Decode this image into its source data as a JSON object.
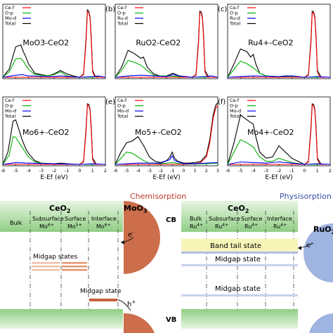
{
  "chart_data": [
    {
      "type": "line",
      "panel": "a",
      "label": "",
      "title": "MoO3-CeO2",
      "xlabel": "",
      "xlim": [
        -6,
        2
      ],
      "legend": [
        "Ce-f",
        "O-p",
        "Mo-d",
        "Total"
      ],
      "legend_position": "top-left",
      "series": [
        {
          "name": "Total",
          "color": "#000000",
          "x": [
            -6,
            -5.5,
            -5,
            -4.6,
            -4.4,
            -4.2,
            -4,
            -3.5,
            -3,
            -2.5,
            -2,
            -1.5,
            -1,
            -0.5,
            0,
            0.3,
            0.5,
            0.6,
            0.7,
            0.8,
            0.9,
            1,
            1.2,
            1.5,
            2
          ],
          "y": [
            0,
            0.12,
            0.45,
            0.48,
            0.38,
            0.3,
            0.2,
            0.06,
            0.04,
            0.02,
            0.05,
            0.1,
            0.05,
            0.02,
            0,
            0.05,
            0.6,
            1.0,
            0.98,
            0.9,
            0.6,
            0.1,
            0.02,
            0,
            0
          ]
        },
        {
          "name": "O-p",
          "color": "#00b000",
          "x": [
            -6,
            -5.5,
            -5,
            -4.6,
            -4.4,
            -4.2,
            -4,
            -3.5,
            -3,
            -2.5,
            -2,
            -1.5,
            -1,
            0,
            2
          ],
          "y": [
            0,
            0.08,
            0.27,
            0.28,
            0.24,
            0.18,
            0.12,
            0.04,
            0.03,
            0.02,
            0.04,
            0.08,
            0.02,
            0,
            0
          ]
        },
        {
          "name": "Ce-f",
          "color": "#ff0000",
          "x": [
            -6,
            0,
            0.3,
            0.5,
            0.6,
            0.7,
            0.8,
            0.9,
            1,
            1.2,
            2
          ],
          "y": [
            0,
            0,
            0.04,
            0.55,
            0.97,
            0.96,
            0.88,
            0.55,
            0.08,
            0,
            0
          ]
        },
        {
          "name": "Mo-d",
          "color": "#0000ff",
          "x": [
            -6,
            -5,
            -4.5,
            -4,
            -2,
            -1.5,
            0,
            1,
            1.5,
            2
          ],
          "y": [
            0,
            0.03,
            0.04,
            0.02,
            0.01,
            0.02,
            0,
            0.01,
            0.02,
            0
          ]
        }
      ]
    },
    {
      "type": "line",
      "panel": "b",
      "label": "(b)",
      "title": "RuO2-CeO2",
      "xlabel": "",
      "xlim": [
        -6,
        2
      ],
      "legend": [
        "Ce-f",
        "O-p",
        "Ru-d",
        "Total"
      ],
      "legend_position": "top-left",
      "series": [
        {
          "name": "Total",
          "color": "#000000",
          "x": [
            -6,
            -5.5,
            -5,
            -4.5,
            -4,
            -3.8,
            -3.5,
            -3,
            -2.5,
            -2,
            -1.5,
            -1,
            0,
            0.3,
            0.5,
            0.6,
            0.7,
            0.8,
            0.9,
            1,
            1.3,
            2
          ],
          "y": [
            0,
            0.15,
            0.4,
            0.35,
            0.28,
            0.3,
            0.15,
            0.05,
            0.02,
            0.02,
            0.06,
            0.02,
            0,
            0.04,
            0.55,
            0.98,
            0.97,
            0.9,
            0.6,
            0.1,
            0,
            0
          ]
        },
        {
          "name": "O-p",
          "color": "#00b000",
          "x": [
            -6,
            -5.5,
            -5,
            -4.5,
            -4,
            -3.5,
            -3,
            -2.5,
            -2,
            -1,
            0,
            2
          ],
          "y": [
            0,
            0.1,
            0.25,
            0.22,
            0.18,
            0.1,
            0.03,
            0.02,
            0.02,
            0.01,
            0,
            0
          ]
        },
        {
          "name": "Ce-f",
          "color": "#ff0000",
          "x": [
            -6,
            0,
            0.3,
            0.5,
            0.6,
            0.7,
            0.8,
            0.9,
            1,
            1.2,
            2
          ],
          "y": [
            0,
            0,
            0.03,
            0.5,
            0.96,
            0.95,
            0.88,
            0.55,
            0.08,
            0,
            0
          ]
        },
        {
          "name": "Ru-d",
          "color": "#0000ff",
          "x": [
            -6,
            -5,
            -4,
            -3,
            -2,
            -1.5,
            -1,
            0,
            1,
            1.5,
            2
          ],
          "y": [
            0,
            0.02,
            0.03,
            0.02,
            0.01,
            0.04,
            0.02,
            0,
            0.01,
            0.02,
            0
          ]
        }
      ]
    },
    {
      "type": "line",
      "panel": "c",
      "label": "(c)",
      "title": "Ru4+-CeO2",
      "xlabel": "",
      "xlim": [
        -6,
        2
      ],
      "legend": [
        "Ce-f",
        "O-p",
        "Ru-d",
        "Total"
      ],
      "legend_position": "top-left",
      "series": [
        {
          "name": "Total",
          "color": "#000000",
          "x": [
            -6,
            -5.5,
            -5,
            -4.5,
            -4.2,
            -4,
            -3.8,
            -3.5,
            -3,
            -2.5,
            -2,
            -1.5,
            -1,
            0,
            0.3,
            0.5,
            0.6,
            0.7,
            0.8,
            0.9,
            1,
            1.3,
            2
          ],
          "y": [
            0,
            0.2,
            0.42,
            0.38,
            0.3,
            0.34,
            0.2,
            0.06,
            0.02,
            0.01,
            0.01,
            0.02,
            0.02,
            0,
            0.04,
            0.55,
            0.98,
            0.97,
            0.9,
            0.6,
            0.1,
            0,
            0
          ]
        },
        {
          "name": "O-p",
          "color": "#00b000",
          "x": [
            -6,
            -5.5,
            -5,
            -4.5,
            -4,
            -3.5,
            -3,
            -2,
            0,
            2
          ],
          "y": [
            0,
            0.12,
            0.24,
            0.2,
            0.14,
            0.06,
            0.02,
            0.01,
            0,
            0
          ]
        },
        {
          "name": "Ce-f",
          "color": "#ff0000",
          "x": [
            -6,
            0,
            0.3,
            0.5,
            0.6,
            0.7,
            0.8,
            0.9,
            1,
            1.2,
            2
          ],
          "y": [
            0,
            0,
            0.03,
            0.5,
            0.96,
            0.95,
            0.88,
            0.55,
            0.08,
            0,
            0
          ]
        },
        {
          "name": "Ru-d",
          "color": "#0000ff",
          "x": [
            -6,
            -4,
            -2,
            -1,
            0,
            1,
            2
          ],
          "y": [
            0,
            0.02,
            0.01,
            0.02,
            0,
            0.01,
            0
          ]
        }
      ]
    },
    {
      "type": "line",
      "panel": "d",
      "label": "",
      "title": "Mo6+-CeO2",
      "xlabel": "E-Ef (eV)",
      "xlim": [
        -6,
        2
      ],
      "xticks": [
        -6,
        -5,
        -4,
        -3,
        -2,
        -1,
        0,
        1,
        2
      ],
      "legend": [
        "Ce-f",
        "O-p",
        "Mo-d",
        "Total"
      ],
      "legend_position": "top-left",
      "series": [
        {
          "name": "Total",
          "color": "#000000",
          "x": [
            -6,
            -5.6,
            -5.2,
            -5,
            -4.8,
            -4.5,
            -4.2,
            -4,
            -3.5,
            -3,
            -2.5,
            -2,
            -1.5,
            -1,
            0,
            0.3,
            0.5,
            0.6,
            0.7,
            0.8,
            0.9,
            1,
            1.3,
            2
          ],
          "y": [
            0,
            0.2,
            0.7,
            0.72,
            0.6,
            0.4,
            0.25,
            0.18,
            0.06,
            0.02,
            0.01,
            0.01,
            0.02,
            0.01,
            0,
            0.05,
            0.6,
            0.98,
            0.97,
            0.9,
            0.6,
            0.1,
            0,
            0
          ]
        },
        {
          "name": "O-p",
          "color": "#00b000",
          "x": [
            -6,
            -5.5,
            -5.2,
            -5,
            -4.5,
            -4,
            -3.5,
            -3,
            -2,
            0,
            2
          ],
          "y": [
            0,
            0.15,
            0.45,
            0.44,
            0.28,
            0.12,
            0.04,
            0.02,
            0.01,
            0,
            0
          ]
        },
        {
          "name": "Ce-f",
          "color": "#ff0000",
          "x": [
            -6,
            0,
            0.3,
            0.5,
            0.6,
            0.7,
            0.8,
            0.9,
            1,
            1.2,
            2
          ],
          "y": [
            0,
            0,
            0.04,
            0.55,
            0.96,
            0.95,
            0.88,
            0.55,
            0.08,
            0,
            0
          ]
        },
        {
          "name": "Mo-d",
          "color": "#0000ff",
          "x": [
            -6,
            -5,
            -4,
            -2,
            0,
            1,
            2
          ],
          "y": [
            0,
            0.03,
            0.02,
            0.01,
            0,
            0.01,
            0
          ]
        }
      ]
    },
    {
      "type": "line",
      "panel": "e",
      "label": "(e)",
      "title": "Mo5+-CeO2",
      "xlabel": "E-Ef (eV)",
      "xlim": [
        -6,
        3
      ],
      "xticks": [
        -6,
        -5,
        -4,
        -3,
        -2,
        -1,
        0,
        1,
        2,
        3
      ],
      "legend": [
        "Ce-f",
        "O-p",
        "Mo-d",
        "Total"
      ],
      "legend_position": "top-left",
      "series": [
        {
          "name": "Total",
          "color": "#000000",
          "x": [
            -6,
            -5.5,
            -5,
            -4.5,
            -4,
            -3.5,
            -3,
            -2.5,
            -2,
            -1.5,
            -1.2,
            -1,
            -0.8,
            -0.5,
            0,
            0.5,
            1,
            1.5,
            2,
            2.3,
            2.6,
            2.8,
            3
          ],
          "y": [
            0,
            0.2,
            0.35,
            0.38,
            0.45,
            0.3,
            0.12,
            0.05,
            0.03,
            0.06,
            0.12,
            0.2,
            0.1,
            0.05,
            0.02,
            0.02,
            0.03,
            0.05,
            0.15,
            0.4,
            0.8,
            0.95,
            1.0
          ]
        },
        {
          "name": "O-p",
          "color": "#00b000",
          "x": [
            -6,
            -5.5,
            -5,
            -4.5,
            -4,
            -3.5,
            -3,
            -2,
            -1,
            0,
            2,
            3
          ],
          "y": [
            0,
            0.1,
            0.2,
            0.18,
            0.12,
            0.06,
            0.02,
            0.01,
            0.03,
            0,
            0.01,
            0.02
          ]
        },
        {
          "name": "Ce-f",
          "color": "#ff0000",
          "x": [
            -6,
            0,
            1,
            1.5,
            2,
            2.3,
            2.6,
            2.8,
            3
          ],
          "y": [
            0,
            0,
            0.01,
            0.03,
            0.12,
            0.35,
            0.75,
            0.9,
            0.96
          ]
        },
        {
          "name": "Mo-d",
          "color": "#0000ff",
          "x": [
            -6,
            -4,
            -2,
            -1.2,
            -1,
            -0.8,
            0,
            1,
            2,
            3
          ],
          "y": [
            0,
            0.02,
            0.02,
            0.08,
            0.14,
            0.06,
            0.01,
            0.01,
            0.02,
            0.03
          ]
        }
      ]
    },
    {
      "type": "line",
      "panel": "f",
      "label": "(f)",
      "title": "Mo4+-CeO2",
      "xlabel": "E-Ef (eV)",
      "xlim": [
        -6,
        2
      ],
      "xticks": [
        -6,
        -5,
        -4,
        -3,
        -2,
        -1,
        0,
        1,
        2
      ],
      "legend": [
        "Ce-f",
        "O-p",
        "Mo-d",
        "Total"
      ],
      "legend_position": "top-left",
      "series": [
        {
          "name": "Total",
          "color": "#000000",
          "x": [
            -6,
            -5.5,
            -5,
            -4.5,
            -4,
            -3.8,
            -3.5,
            -3,
            -2.5,
            -2,
            -1.5,
            -1,
            -0.5,
            0,
            0.3,
            0.5,
            0.6,
            0.7,
            0.8,
            0.9,
            1,
            1.3,
            2
          ],
          "y": [
            0,
            0.35,
            0.8,
            0.72,
            0.65,
            0.45,
            0.2,
            0.1,
            0.12,
            0.3,
            0.2,
            0.1,
            0.05,
            0,
            0.05,
            0.6,
            0.98,
            0.97,
            0.9,
            0.6,
            0.1,
            0,
            0
          ]
        },
        {
          "name": "O-p",
          "color": "#00b000",
          "x": [
            -6,
            -5.5,
            -5,
            -4.5,
            -4,
            -3.5,
            -3,
            -2.5,
            -2,
            -1,
            0,
            2
          ],
          "y": [
            0,
            0.2,
            0.4,
            0.35,
            0.28,
            0.12,
            0.05,
            0.05,
            0.1,
            0.03,
            0,
            0
          ]
        },
        {
          "name": "Ce-f",
          "color": "#ff0000",
          "x": [
            -6,
            0,
            0.3,
            0.5,
            0.6,
            0.7,
            0.8,
            0.9,
            1,
            1.2,
            2
          ],
          "y": [
            0,
            0,
            0.04,
            0.55,
            0.96,
            0.95,
            0.88,
            0.55,
            0.08,
            0,
            0
          ]
        },
        {
          "name": "Mo-d",
          "color": "#0000ff",
          "x": [
            -6,
            -5,
            -4,
            -3,
            -2,
            -1,
            0,
            1,
            2
          ],
          "y": [
            0,
            0.04,
            0.03,
            0.02,
            0.04,
            0.02,
            0,
            0.01,
            0
          ]
        }
      ]
    }
  ],
  "diagram": {
    "left": {
      "heading": "Chemisorption",
      "heading_color": "#c0392b",
      "ceo2_title": "CeO",
      "ceo2_sub": "2",
      "columns": [
        {
          "name": "Bulk",
          "ion": ""
        },
        {
          "name": "Subsurface",
          "ion": "Mo",
          "charge": "6+"
        },
        {
          "name": "Surface",
          "ion": "Mo",
          "charge": "5+"
        },
        {
          "name": "Interface",
          "ion": "Mo",
          "charge": "6+"
        }
      ],
      "oxide": "MoO",
      "oxide_sub": "3",
      "oxide_color": "#c8623c",
      "electron": "e",
      "electron_sign": "-",
      "hole": "h",
      "hole_sign": "+",
      "midgap_states": "Midgap states",
      "midgap_state": "Midgap state"
    },
    "right": {
      "heading": "Physisorption",
      "heading_color": "#3a4ea0",
      "ceo2_title": "CeO",
      "ceo2_sub": "2",
      "columns": [
        {
          "name": "Bulk",
          "ion": "Ru",
          "charge": "4+"
        },
        {
          "name": "Subsurface",
          "ion": "Ru",
          "charge": "4+"
        },
        {
          "name": "Surface",
          "ion": "Ru",
          "charge": "4+"
        },
        {
          "name": "Interface",
          "ion": "Ru",
          "charge": "4+"
        }
      ],
      "oxide": "RuO",
      "oxide_sub": "2",
      "oxide_color": "#9fb4e0",
      "band_tail": "Band tail state",
      "midgap_state_1": "Midgap state",
      "midgap_state_2": "Midgap state",
      "electron": "e",
      "electron_sign": "-"
    },
    "cb_label": "CB",
    "vb_label": "VB",
    "band_color": "#8fce84"
  }
}
